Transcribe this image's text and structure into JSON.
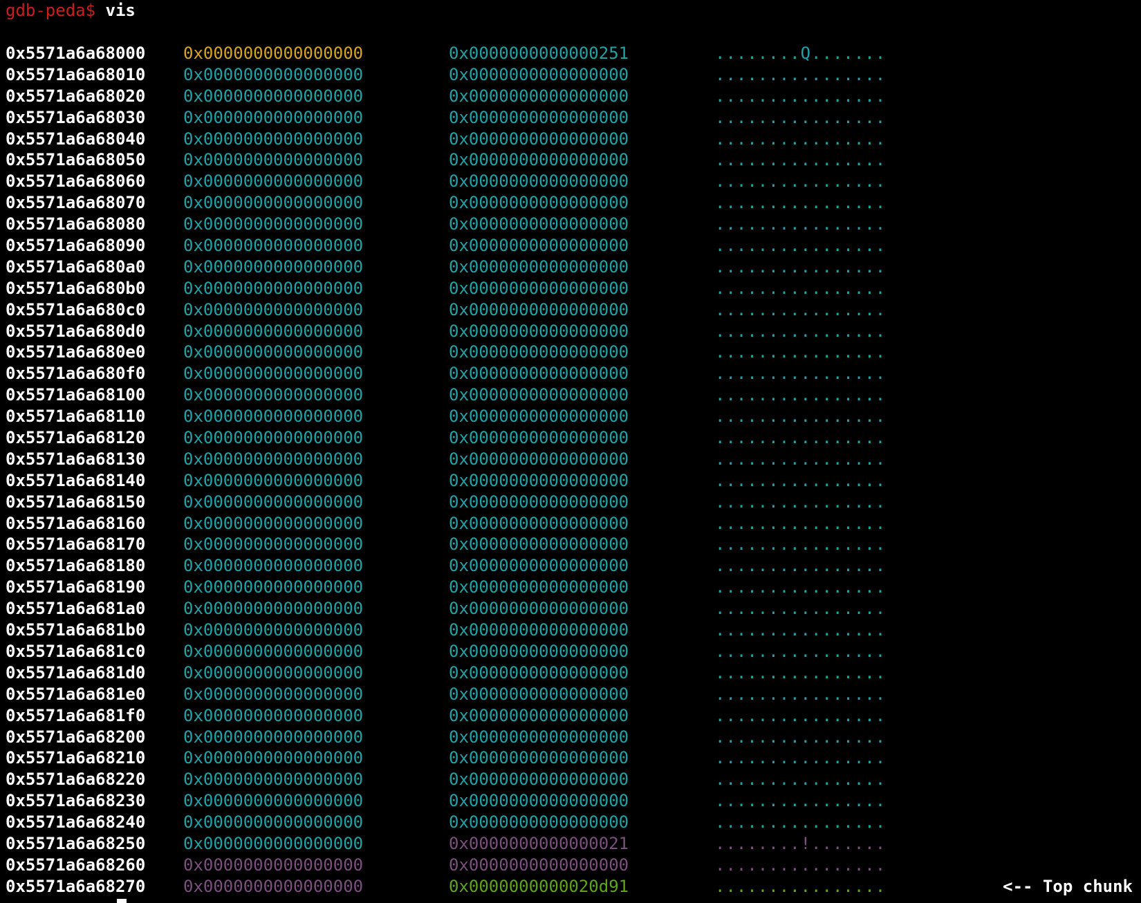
{
  "terminal": {
    "prompt": "gdb-peda$",
    "command": "vis",
    "colors": {
      "prompt": "#cc1d1d",
      "address": "#ffffff",
      "chunk_header": "#d7a51f",
      "allocated": "#1fa3a7",
      "second_chunk": "#7d4e80",
      "top_chunk": "#5ea51a"
    }
  },
  "rows": [
    {
      "addr": "0x5571a6a68000",
      "q1": "0x0000000000000000",
      "q1_color": "c-orange",
      "q2": "0x0000000000000251",
      "q2_color": "c-cyan",
      "ascii": "........Q.......",
      "ascii_color": "c-cyan",
      "note": ""
    },
    {
      "addr": "0x5571a6a68010",
      "q1": "0x0000000000000000",
      "q1_color": "c-cyan",
      "q2": "0x0000000000000000",
      "q2_color": "c-cyan",
      "ascii": "................",
      "ascii_color": "c-cyan",
      "note": ""
    },
    {
      "addr": "0x5571a6a68020",
      "q1": "0x0000000000000000",
      "q1_color": "c-cyan",
      "q2": "0x0000000000000000",
      "q2_color": "c-cyan",
      "ascii": "................",
      "ascii_color": "c-cyan",
      "note": ""
    },
    {
      "addr": "0x5571a6a68030",
      "q1": "0x0000000000000000",
      "q1_color": "c-cyan",
      "q2": "0x0000000000000000",
      "q2_color": "c-cyan",
      "ascii": "................",
      "ascii_color": "c-cyan",
      "note": ""
    },
    {
      "addr": "0x5571a6a68040",
      "q1": "0x0000000000000000",
      "q1_color": "c-cyan",
      "q2": "0x0000000000000000",
      "q2_color": "c-cyan",
      "ascii": "................",
      "ascii_color": "c-cyan",
      "note": ""
    },
    {
      "addr": "0x5571a6a68050",
      "q1": "0x0000000000000000",
      "q1_color": "c-cyan",
      "q2": "0x0000000000000000",
      "q2_color": "c-cyan",
      "ascii": "................",
      "ascii_color": "c-cyan",
      "note": ""
    },
    {
      "addr": "0x5571a6a68060",
      "q1": "0x0000000000000000",
      "q1_color": "c-cyan",
      "q2": "0x0000000000000000",
      "q2_color": "c-cyan",
      "ascii": "................",
      "ascii_color": "c-cyan",
      "note": ""
    },
    {
      "addr": "0x5571a6a68070",
      "q1": "0x0000000000000000",
      "q1_color": "c-cyan",
      "q2": "0x0000000000000000",
      "q2_color": "c-cyan",
      "ascii": "................",
      "ascii_color": "c-cyan",
      "note": ""
    },
    {
      "addr": "0x5571a6a68080",
      "q1": "0x0000000000000000",
      "q1_color": "c-cyan",
      "q2": "0x0000000000000000",
      "q2_color": "c-cyan",
      "ascii": "................",
      "ascii_color": "c-cyan",
      "note": ""
    },
    {
      "addr": "0x5571a6a68090",
      "q1": "0x0000000000000000",
      "q1_color": "c-cyan",
      "q2": "0x0000000000000000",
      "q2_color": "c-cyan",
      "ascii": "................",
      "ascii_color": "c-cyan",
      "note": ""
    },
    {
      "addr": "0x5571a6a680a0",
      "q1": "0x0000000000000000",
      "q1_color": "c-cyan",
      "q2": "0x0000000000000000",
      "q2_color": "c-cyan",
      "ascii": "................",
      "ascii_color": "c-cyan",
      "note": ""
    },
    {
      "addr": "0x5571a6a680b0",
      "q1": "0x0000000000000000",
      "q1_color": "c-cyan",
      "q2": "0x0000000000000000",
      "q2_color": "c-cyan",
      "ascii": "................",
      "ascii_color": "c-cyan",
      "note": ""
    },
    {
      "addr": "0x5571a6a680c0",
      "q1": "0x0000000000000000",
      "q1_color": "c-cyan",
      "q2": "0x0000000000000000",
      "q2_color": "c-cyan",
      "ascii": "................",
      "ascii_color": "c-cyan",
      "note": ""
    },
    {
      "addr": "0x5571a6a680d0",
      "q1": "0x0000000000000000",
      "q1_color": "c-cyan",
      "q2": "0x0000000000000000",
      "q2_color": "c-cyan",
      "ascii": "................",
      "ascii_color": "c-cyan",
      "note": ""
    },
    {
      "addr": "0x5571a6a680e0",
      "q1": "0x0000000000000000",
      "q1_color": "c-cyan",
      "q2": "0x0000000000000000",
      "q2_color": "c-cyan",
      "ascii": "................",
      "ascii_color": "c-cyan",
      "note": ""
    },
    {
      "addr": "0x5571a6a680f0",
      "q1": "0x0000000000000000",
      "q1_color": "c-cyan",
      "q2": "0x0000000000000000",
      "q2_color": "c-cyan",
      "ascii": "................",
      "ascii_color": "c-cyan",
      "note": ""
    },
    {
      "addr": "0x5571a6a68100",
      "q1": "0x0000000000000000",
      "q1_color": "c-cyan",
      "q2": "0x0000000000000000",
      "q2_color": "c-cyan",
      "ascii": "................",
      "ascii_color": "c-cyan",
      "note": ""
    },
    {
      "addr": "0x5571a6a68110",
      "q1": "0x0000000000000000",
      "q1_color": "c-cyan",
      "q2": "0x0000000000000000",
      "q2_color": "c-cyan",
      "ascii": "................",
      "ascii_color": "c-cyan",
      "note": ""
    },
    {
      "addr": "0x5571a6a68120",
      "q1": "0x0000000000000000",
      "q1_color": "c-cyan",
      "q2": "0x0000000000000000",
      "q2_color": "c-cyan",
      "ascii": "................",
      "ascii_color": "c-cyan",
      "note": ""
    },
    {
      "addr": "0x5571a6a68130",
      "q1": "0x0000000000000000",
      "q1_color": "c-cyan",
      "q2": "0x0000000000000000",
      "q2_color": "c-cyan",
      "ascii": "................",
      "ascii_color": "c-cyan",
      "note": ""
    },
    {
      "addr": "0x5571a6a68140",
      "q1": "0x0000000000000000",
      "q1_color": "c-cyan",
      "q2": "0x0000000000000000",
      "q2_color": "c-cyan",
      "ascii": "................",
      "ascii_color": "c-cyan",
      "note": ""
    },
    {
      "addr": "0x5571a6a68150",
      "q1": "0x0000000000000000",
      "q1_color": "c-cyan",
      "q2": "0x0000000000000000",
      "q2_color": "c-cyan",
      "ascii": "................",
      "ascii_color": "c-cyan",
      "note": ""
    },
    {
      "addr": "0x5571a6a68160",
      "q1": "0x0000000000000000",
      "q1_color": "c-cyan",
      "q2": "0x0000000000000000",
      "q2_color": "c-cyan",
      "ascii": "................",
      "ascii_color": "c-cyan",
      "note": ""
    },
    {
      "addr": "0x5571a6a68170",
      "q1": "0x0000000000000000",
      "q1_color": "c-cyan",
      "q2": "0x0000000000000000",
      "q2_color": "c-cyan",
      "ascii": "................",
      "ascii_color": "c-cyan",
      "note": ""
    },
    {
      "addr": "0x5571a6a68180",
      "q1": "0x0000000000000000",
      "q1_color": "c-cyan",
      "q2": "0x0000000000000000",
      "q2_color": "c-cyan",
      "ascii": "................",
      "ascii_color": "c-cyan",
      "note": ""
    },
    {
      "addr": "0x5571a6a68190",
      "q1": "0x0000000000000000",
      "q1_color": "c-cyan",
      "q2": "0x0000000000000000",
      "q2_color": "c-cyan",
      "ascii": "................",
      "ascii_color": "c-cyan",
      "note": ""
    },
    {
      "addr": "0x5571a6a681a0",
      "q1": "0x0000000000000000",
      "q1_color": "c-cyan",
      "q2": "0x0000000000000000",
      "q2_color": "c-cyan",
      "ascii": "................",
      "ascii_color": "c-cyan",
      "note": ""
    },
    {
      "addr": "0x5571a6a681b0",
      "q1": "0x0000000000000000",
      "q1_color": "c-cyan",
      "q2": "0x0000000000000000",
      "q2_color": "c-cyan",
      "ascii": "................",
      "ascii_color": "c-cyan",
      "note": ""
    },
    {
      "addr": "0x5571a6a681c0",
      "q1": "0x0000000000000000",
      "q1_color": "c-cyan",
      "q2": "0x0000000000000000",
      "q2_color": "c-cyan",
      "ascii": "................",
      "ascii_color": "c-cyan",
      "note": ""
    },
    {
      "addr": "0x5571a6a681d0",
      "q1": "0x0000000000000000",
      "q1_color": "c-cyan",
      "q2": "0x0000000000000000",
      "q2_color": "c-cyan",
      "ascii": "................",
      "ascii_color": "c-cyan",
      "note": ""
    },
    {
      "addr": "0x5571a6a681e0",
      "q1": "0x0000000000000000",
      "q1_color": "c-cyan",
      "q2": "0x0000000000000000",
      "q2_color": "c-cyan",
      "ascii": "................",
      "ascii_color": "c-cyan",
      "note": ""
    },
    {
      "addr": "0x5571a6a681f0",
      "q1": "0x0000000000000000",
      "q1_color": "c-cyan",
      "q2": "0x0000000000000000",
      "q2_color": "c-cyan",
      "ascii": "................",
      "ascii_color": "c-cyan",
      "note": ""
    },
    {
      "addr": "0x5571a6a68200",
      "q1": "0x0000000000000000",
      "q1_color": "c-cyan",
      "q2": "0x0000000000000000",
      "q2_color": "c-cyan",
      "ascii": "................",
      "ascii_color": "c-cyan",
      "note": ""
    },
    {
      "addr": "0x5571a6a68210",
      "q1": "0x0000000000000000",
      "q1_color": "c-cyan",
      "q2": "0x0000000000000000",
      "q2_color": "c-cyan",
      "ascii": "................",
      "ascii_color": "c-cyan",
      "note": ""
    },
    {
      "addr": "0x5571a6a68220",
      "q1": "0x0000000000000000",
      "q1_color": "c-cyan",
      "q2": "0x0000000000000000",
      "q2_color": "c-cyan",
      "ascii": "................",
      "ascii_color": "c-cyan",
      "note": ""
    },
    {
      "addr": "0x5571a6a68230",
      "q1": "0x0000000000000000",
      "q1_color": "c-cyan",
      "q2": "0x0000000000000000",
      "q2_color": "c-cyan",
      "ascii": "................",
      "ascii_color": "c-cyan",
      "note": ""
    },
    {
      "addr": "0x5571a6a68240",
      "q1": "0x0000000000000000",
      "q1_color": "c-cyan",
      "q2": "0x0000000000000000",
      "q2_color": "c-cyan",
      "ascii": "................",
      "ascii_color": "c-cyan",
      "note": ""
    },
    {
      "addr": "0x5571a6a68250",
      "q1": "0x0000000000000000",
      "q1_color": "c-cyan",
      "q2": "0x0000000000000021",
      "q2_color": "c-purple",
      "ascii": "........!.......",
      "ascii_color": "c-purple",
      "note": ""
    },
    {
      "addr": "0x5571a6a68260",
      "q1": "0x0000000000000000",
      "q1_color": "c-purple",
      "q2": "0x0000000000000000",
      "q2_color": "c-purple",
      "ascii": "................",
      "ascii_color": "c-purple",
      "note": ""
    },
    {
      "addr": "0x5571a6a68270",
      "q1": "0x0000000000000000",
      "q1_color": "c-purple",
      "q2": "0x0000000000020d91",
      "q2_color": "c-green",
      "ascii": "................",
      "ascii_color": "c-green",
      "note": "<-- Top chunk"
    }
  ]
}
